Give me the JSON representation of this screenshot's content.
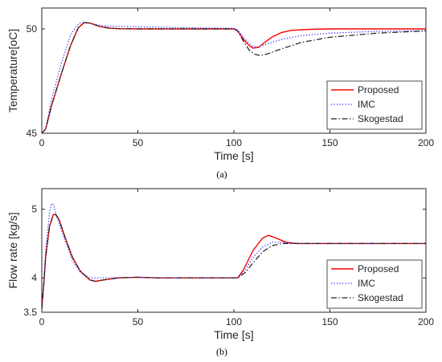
{
  "chart_data": [
    {
      "type": "line",
      "panel_label": "(a)",
      "xlabel": "Time [s]",
      "ylabel": "Temperature[oC]",
      "xlim": [
        0,
        200
      ],
      "ylim": [
        45,
        51
      ],
      "xticks": [
        0,
        50,
        100,
        150,
        200
      ],
      "yticks": [
        45,
        50
      ],
      "legend_position": "bottom-right",
      "series": [
        {
          "name": "Proposed",
          "color": "#ff0000",
          "dash": "solid",
          "points": [
            [
              0,
              45
            ],
            [
              2,
              45.2
            ],
            [
              5,
              46.3
            ],
            [
              10,
              47.8
            ],
            [
              15,
              49.2
            ],
            [
              19,
              50.05
            ],
            [
              22,
              50.3
            ],
            [
              25,
              50.28
            ],
            [
              30,
              50.12
            ],
            [
              35,
              50.04
            ],
            [
              40,
              50.01
            ],
            [
              50,
              50
            ],
            [
              100,
              50
            ],
            [
              102,
              49.9
            ],
            [
              105,
              49.5
            ],
            [
              108,
              49.2
            ],
            [
              110,
              49.08
            ],
            [
              113,
              49.12
            ],
            [
              116,
              49.35
            ],
            [
              120,
              49.62
            ],
            [
              125,
              49.83
            ],
            [
              130,
              49.93
            ],
            [
              140,
              49.98
            ],
            [
              150,
              50
            ],
            [
              200,
              50
            ]
          ]
        },
        {
          "name": "IMC",
          "color": "#3030ff",
          "dash": "dotted",
          "points": [
            [
              0,
              45
            ],
            [
              2,
              45.2
            ],
            [
              5,
              46.6
            ],
            [
              10,
              48.3
            ],
            [
              15,
              49.7
            ],
            [
              18,
              50.15
            ],
            [
              20,
              50.28
            ],
            [
              23,
              50.3
            ],
            [
              27,
              50.22
            ],
            [
              32,
              50.15
            ],
            [
              40,
              50.12
            ],
            [
              50,
              50.1
            ],
            [
              80,
              50.05
            ],
            [
              100,
              50.03
            ],
            [
              102,
              49.95
            ],
            [
              105,
              49.6
            ],
            [
              108,
              49.3
            ],
            [
              110,
              49.15
            ],
            [
              113,
              49.15
            ],
            [
              118,
              49.3
            ],
            [
              125,
              49.5
            ],
            [
              135,
              49.68
            ],
            [
              150,
              49.8
            ],
            [
              175,
              49.88
            ],
            [
              200,
              49.92
            ]
          ]
        },
        {
          "name": "Skogestad",
          "color": "#202020",
          "dash": "dashdot",
          "points": [
            [
              0,
              45
            ],
            [
              2,
              45.2
            ],
            [
              5,
              46.3
            ],
            [
              10,
              47.8
            ],
            [
              15,
              49.2
            ],
            [
              19,
              50.05
            ],
            [
              22,
              50.3
            ],
            [
              25,
              50.28
            ],
            [
              30,
              50.12
            ],
            [
              35,
              50.04
            ],
            [
              40,
              50.01
            ],
            [
              50,
              50
            ],
            [
              100,
              50
            ],
            [
              102,
              49.9
            ],
            [
              105,
              49.4
            ],
            [
              108,
              48.98
            ],
            [
              111,
              48.78
            ],
            [
              114,
              48.72
            ],
            [
              118,
              48.82
            ],
            [
              125,
              49.05
            ],
            [
              135,
              49.35
            ],
            [
              150,
              49.6
            ],
            [
              175,
              49.8
            ],
            [
              200,
              49.9
            ]
          ]
        }
      ]
    },
    {
      "type": "line",
      "panel_label": "(b)",
      "xlabel": "Time [s]",
      "ylabel": "Flow rate [kg/s]",
      "xlim": [
        0,
        200
      ],
      "ylim": [
        3.5,
        5.3
      ],
      "xticks": [
        0,
        50,
        100,
        150,
        200
      ],
      "yticks": [
        3.5,
        4,
        5
      ],
      "ytick_labels": [
        "3.5",
        "4",
        "5"
      ],
      "legend_position": "bottom-right",
      "series": [
        {
          "name": "Proposed",
          "color": "#ff0000",
          "dash": "solid",
          "points": [
            [
              0,
              3.55
            ],
            [
              1,
              3.9
            ],
            [
              2,
              4.3
            ],
            [
              4,
              4.75
            ],
            [
              6,
              4.92
            ],
            [
              7,
              4.93
            ],
            [
              9,
              4.85
            ],
            [
              12,
              4.6
            ],
            [
              16,
              4.3
            ],
            [
              20,
              4.1
            ],
            [
              25,
              3.97
            ],
            [
              28,
              3.95
            ],
            [
              32,
              3.97
            ],
            [
              40,
              4
            ],
            [
              50,
              4.01
            ],
            [
              60,
              4
            ],
            [
              100,
              4
            ],
            [
              102,
              4
            ],
            [
              105,
              4.12
            ],
            [
              110,
              4.4
            ],
            [
              115,
              4.58
            ],
            [
              118,
              4.62
            ],
            [
              122,
              4.58
            ],
            [
              127,
              4.52
            ],
            [
              133,
              4.5
            ],
            [
              200,
              4.5
            ]
          ]
        },
        {
          "name": "IMC",
          "color": "#3030ff",
          "dash": "dotted",
          "points": [
            [
              0,
              3.55
            ],
            [
              1,
              3.9
            ],
            [
              2,
              4.4
            ],
            [
              4,
              4.95
            ],
            [
              5,
              5.08
            ],
            [
              6,
              5.07
            ],
            [
              8,
              4.88
            ],
            [
              12,
              4.55
            ],
            [
              16,
              4.25
            ],
            [
              20,
              4.08
            ],
            [
              25,
              4
            ],
            [
              30,
              4
            ],
            [
              50,
              4.01
            ],
            [
              60,
              4
            ],
            [
              100,
              4
            ],
            [
              102,
              4
            ],
            [
              106,
              4.12
            ],
            [
              110,
              4.3
            ],
            [
              115,
              4.45
            ],
            [
              120,
              4.52
            ],
            [
              125,
              4.52
            ],
            [
              130,
              4.5
            ],
            [
              200,
              4.5
            ]
          ]
        },
        {
          "name": "Skogestad",
          "color": "#202020",
          "dash": "dashdot",
          "points": [
            [
              0,
              3.55
            ],
            [
              1,
              3.9
            ],
            [
              2,
              4.3
            ],
            [
              4,
              4.75
            ],
            [
              6,
              4.92
            ],
            [
              7,
              4.93
            ],
            [
              9,
              4.85
            ],
            [
              12,
              4.6
            ],
            [
              16,
              4.3
            ],
            [
              20,
              4.1
            ],
            [
              25,
              3.97
            ],
            [
              28,
              3.95
            ],
            [
              32,
              3.97
            ],
            [
              40,
              4
            ],
            [
              50,
              4.01
            ],
            [
              60,
              4
            ],
            [
              100,
              4
            ],
            [
              102,
              4
            ],
            [
              106,
              4.08
            ],
            [
              110,
              4.22
            ],
            [
              115,
              4.38
            ],
            [
              120,
              4.47
            ],
            [
              125,
              4.5
            ],
            [
              130,
              4.5
            ],
            [
              200,
              4.5
            ]
          ]
        }
      ]
    }
  ]
}
